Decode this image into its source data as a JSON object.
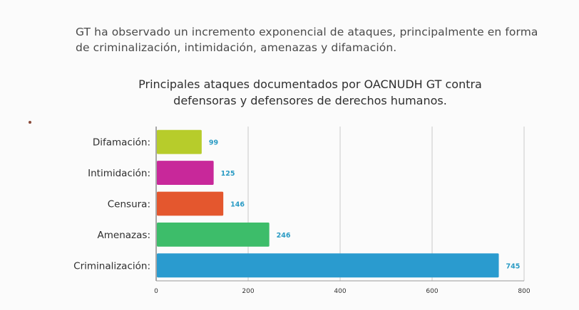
{
  "intro_text": "GT ha observado un incremento exponencial de ataques, principalmente en forma de criminalización, intimidación, amenazas y difamación.",
  "chart_data": {
    "type": "bar",
    "orientation": "horizontal",
    "title": "Principales ataques documentados por OACNUDH GT contra\ndefensoras y defensores de derechos humanos.",
    "categories": [
      "Difamación:",
      "Intimidación:",
      "Censura:",
      "Amenazas:",
      "Criminalización:"
    ],
    "values": [
      99,
      125,
      146,
      246,
      745
    ],
    "colors": [
      "#b7cc2b",
      "#c8289a",
      "#e4572e",
      "#3dbd6a",
      "#2a9bcf"
    ],
    "value_label_color": "#2a9bc4",
    "xlim": [
      0,
      800
    ],
    "xticks": [
      0,
      200,
      400,
      600,
      800
    ],
    "xlabel": "",
    "ylabel": "",
    "grid": "vertical",
    "legend": "none"
  }
}
